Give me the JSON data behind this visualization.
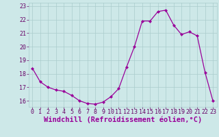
{
  "x": [
    0,
    1,
    2,
    3,
    4,
    5,
    6,
    7,
    8,
    9,
    10,
    11,
    12,
    13,
    14,
    15,
    16,
    17,
    18,
    19,
    20,
    21,
    22,
    23
  ],
  "y": [
    18.4,
    17.4,
    17.0,
    16.8,
    16.7,
    16.4,
    16.0,
    15.8,
    15.75,
    15.9,
    16.3,
    16.9,
    18.5,
    20.0,
    21.9,
    21.9,
    22.6,
    22.7,
    21.6,
    20.9,
    21.1,
    20.8,
    18.1,
    16.0
  ],
  "line_color": "#990099",
  "marker": "D",
  "marker_size": 2.2,
  "bg_color": "#cde8e8",
  "grid_color": "#aacccc",
  "xlabel": "Windchill (Refroidissement éolien,°C)",
  "xlabel_fontsize": 7.5,
  "ytick_labels": [
    "16",
    "17",
    "18",
    "19",
    "20",
    "21",
    "22",
    "23"
  ],
  "yticks": [
    16,
    17,
    18,
    19,
    20,
    21,
    22,
    23
  ],
  "xticks": [
    0,
    1,
    2,
    3,
    4,
    5,
    6,
    7,
    8,
    9,
    10,
    11,
    12,
    13,
    14,
    15,
    16,
    17,
    18,
    19,
    20,
    21,
    22,
    23
  ],
  "ylim": [
    15.55,
    23.25
  ],
  "xlim": [
    -0.5,
    23.5
  ]
}
